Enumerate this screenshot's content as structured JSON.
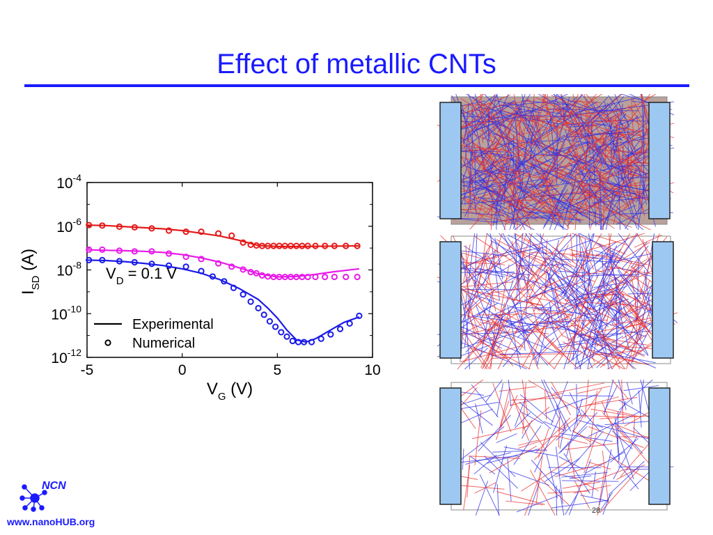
{
  "slide": {
    "title": "Effect of metallic CNTs",
    "page_number": "28",
    "logo_text": "NCN",
    "url": "www.nanoHUB.org",
    "accent_color": "#1a1aff"
  },
  "chart_data": {
    "type": "line",
    "title": "",
    "xlabel": {
      "main": "V",
      "sub": "G",
      "unit": " (V)"
    },
    "ylabel": {
      "main": "I",
      "sub": "SD",
      "unit": " (A)"
    },
    "xlim": [
      -5,
      10
    ],
    "ylim_log10": [
      -12,
      -4
    ],
    "y_scale": "log",
    "xticks": [
      "-5",
      "0",
      "5",
      "10"
    ],
    "yticks": [
      {
        "base": "10",
        "exp": "-4"
      },
      {
        "base": "10",
        "exp": "-6"
      },
      {
        "base": "10",
        "exp": "-8"
      },
      {
        "base": "10",
        "exp": "-10"
      },
      {
        "base": "10",
        "exp": "-12"
      }
    ],
    "annotation": {
      "main": "V",
      "sub": "D",
      "rest": " = 0.1 V"
    },
    "legend": {
      "placement": "bottom-left",
      "entries": [
        {
          "label": "Experimental",
          "style": "line"
        },
        {
          "label": "Numerical",
          "style": "circle"
        }
      ]
    },
    "series": [
      {
        "color": "#e41a1a",
        "experimental": {
          "x": [
            -5,
            -4,
            -3,
            -2,
            -1,
            0,
            1,
            2,
            3,
            4,
            5,
            6,
            7,
            8,
            9.3
          ],
          "log10_y": [
            -5.95,
            -5.97,
            -6.02,
            -6.07,
            -6.12,
            -6.2,
            -6.32,
            -6.45,
            -6.65,
            -6.88,
            -6.93,
            -6.93,
            -6.92,
            -6.91,
            -6.9
          ]
        },
        "numerical": {
          "x": [
            -4.9,
            -4.2,
            -3.3,
            -2.5,
            -1.6,
            -0.7,
            0.2,
            1.0,
            1.9,
            2.6,
            3.2,
            3.6,
            3.9,
            4.2,
            4.5,
            4.8,
            5.1,
            5.4,
            5.7,
            6.0,
            6.3,
            6.6,
            7.0,
            7.5,
            8.0,
            8.6,
            9.2
          ],
          "log10_y": [
            -5.95,
            -5.97,
            -6.02,
            -6.05,
            -6.1,
            -6.2,
            -6.25,
            -6.25,
            -6.33,
            -6.43,
            -6.75,
            -6.85,
            -6.88,
            -6.9,
            -6.9,
            -6.9,
            -6.9,
            -6.9,
            -6.9,
            -6.9,
            -6.9,
            -6.9,
            -6.9,
            -6.9,
            -6.9,
            -6.9,
            -6.9
          ]
        }
      },
      {
        "color": "#e81ae8",
        "experimental": {
          "x": [
            -5,
            -4,
            -3,
            -2,
            -1,
            0,
            1,
            2,
            3,
            4,
            5,
            6,
            7,
            8,
            9.3
          ],
          "log10_y": [
            -7.08,
            -7.1,
            -7.12,
            -7.15,
            -7.2,
            -7.3,
            -7.45,
            -7.65,
            -7.9,
            -8.18,
            -8.32,
            -8.3,
            -8.2,
            -8.08,
            -7.95
          ]
        },
        "numerical": {
          "x": [
            -4.9,
            -4.2,
            -3.3,
            -2.5,
            -1.6,
            -0.7,
            0.2,
            1.0,
            1.9,
            2.6,
            3.2,
            3.6,
            3.9,
            4.2,
            4.5,
            4.8,
            5.1,
            5.4,
            5.7,
            6.0,
            6.3,
            6.6,
            7.0,
            7.5,
            8.0,
            8.6,
            9.2
          ],
          "log10_y": [
            -7.07,
            -7.07,
            -7.12,
            -7.15,
            -7.15,
            -7.25,
            -7.4,
            -7.5,
            -7.7,
            -7.85,
            -7.98,
            -8.1,
            -8.15,
            -8.25,
            -8.3,
            -8.32,
            -8.32,
            -8.32,
            -8.32,
            -8.32,
            -8.32,
            -8.32,
            -8.32,
            -8.32,
            -8.32,
            -8.32,
            -8.32
          ]
        }
      },
      {
        "color": "#1a1ae8",
        "experimental": {
          "x": [
            -5,
            -4,
            -3,
            -2,
            -1,
            0,
            1,
            2,
            3,
            4,
            4.5,
            5,
            5.5,
            6,
            6.5,
            7,
            7.5,
            8,
            8.5,
            9.3
          ],
          "log10_y": [
            -7.55,
            -7.57,
            -7.62,
            -7.7,
            -7.8,
            -7.95,
            -8.15,
            -8.45,
            -8.85,
            -9.35,
            -9.75,
            -10.2,
            -10.75,
            -11.2,
            -11.3,
            -11.15,
            -10.9,
            -10.65,
            -10.4,
            -10.15
          ]
        },
        "numerical": {
          "x": [
            -4.9,
            -4.2,
            -3.3,
            -2.5,
            -1.6,
            -0.7,
            0.2,
            1.0,
            1.6,
            2.2,
            2.7,
            3.2,
            3.6,
            4.0,
            4.3,
            4.6,
            4.9,
            5.2,
            5.5,
            5.8,
            6.1,
            6.4,
            6.8,
            7.3,
            7.8,
            8.3,
            8.8,
            9.3
          ],
          "log10_y": [
            -7.55,
            -7.55,
            -7.6,
            -7.65,
            -7.72,
            -7.8,
            -7.85,
            -8.05,
            -8.3,
            -8.52,
            -8.82,
            -9.12,
            -9.45,
            -9.75,
            -10.05,
            -10.35,
            -10.6,
            -10.85,
            -11.05,
            -11.25,
            -11.3,
            -11.3,
            -11.3,
            -11.15,
            -10.95,
            -10.7,
            -10.45,
            -10.1
          ]
        }
      }
    ]
  },
  "images": [
    {
      "label": "dense-network",
      "color": "#b9a29c"
    },
    {
      "label": "medium-network",
      "color": "#ffffff"
    },
    {
      "label": "sparse-network",
      "color": "#ffffff"
    }
  ]
}
